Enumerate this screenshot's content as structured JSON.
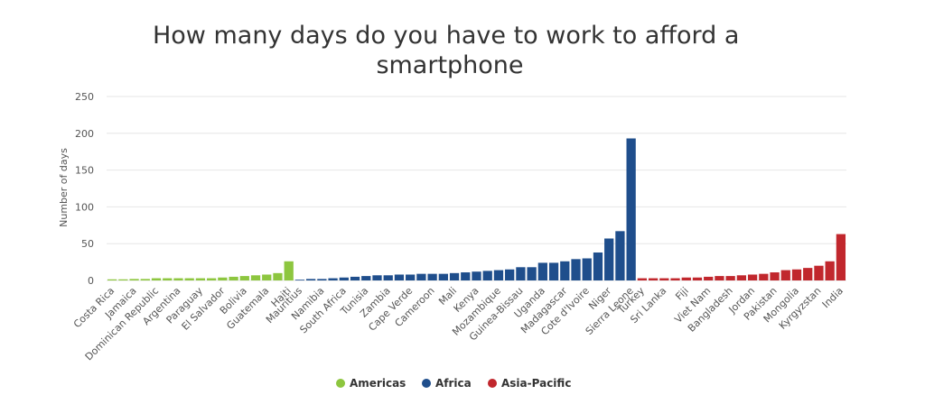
{
  "chart_data": {
    "type": "bar",
    "title": "How many days do you have to work to afford a smartphone",
    "y_label": "Number of days",
    "categories": [
      "Costa Rica",
      null,
      "Jamaica",
      null,
      "Dominican Republic",
      null,
      "Argentina",
      null,
      "Paraguay",
      null,
      "El Salvador",
      null,
      "Bolivia",
      null,
      "Guatemala",
      null,
      "Haiti",
      "Mauritius",
      null,
      "Namibia",
      null,
      "South Africa",
      null,
      "Tunisia",
      null,
      "Zambia",
      null,
      "Cape Verde",
      null,
      "Cameroon",
      null,
      "Mali",
      null,
      "Kenya",
      null,
      "Mozambique",
      null,
      "Guinea-Bissau",
      null,
      "Uganda",
      null,
      "Madagascar",
      null,
      "Cote d'Ivoire",
      null,
      "Niger",
      null,
      "Sierra Leone",
      "Turkey",
      null,
      "Sri Lanka",
      null,
      "Fiji",
      null,
      "Viet Nam",
      null,
      "Bangladesh",
      null,
      "Jordan",
      null,
      "Pakistan",
      null,
      "Mongolia",
      null,
      "Kyrgyzstan",
      null,
      "India"
    ],
    "series": [
      {
        "name": "Americas",
        "color": "#8dc63f",
        "values": [
          1.5,
          1.5,
          2,
          2,
          3,
          3,
          3,
          3,
          3,
          3,
          4,
          5,
          6,
          7,
          8,
          10,
          26,
          null,
          null,
          null,
          null,
          null,
          null,
          null,
          null,
          null,
          null,
          null,
          null,
          null,
          null,
          null,
          null,
          null,
          null,
          null,
          null,
          null,
          null,
          null,
          null,
          null,
          null,
          null,
          null,
          null,
          null,
          null,
          null,
          null,
          null,
          null,
          null,
          null,
          null,
          null,
          null,
          null,
          null,
          null,
          null,
          null,
          null,
          null,
          null,
          null,
          null
        ]
      },
      {
        "name": "Africa",
        "color": "#1f4e8c",
        "values": [
          null,
          null,
          null,
          null,
          null,
          null,
          null,
          null,
          null,
          null,
          null,
          null,
          null,
          null,
          null,
          null,
          null,
          1,
          2,
          2,
          3,
          4,
          5,
          6,
          7,
          7,
          8,
          8,
          9,
          9,
          9,
          10,
          11,
          12,
          13,
          14,
          15,
          18,
          18,
          24,
          24,
          26,
          29,
          30,
          38,
          57,
          67,
          193,
          null,
          null,
          null,
          null,
          null,
          null,
          null,
          null,
          null,
          null,
          null,
          null,
          null,
          null,
          null,
          null,
          null,
          null,
          null
        ]
      },
      {
        "name": "Asia-Pacific",
        "color": "#c1272d",
        "values": [
          null,
          null,
          null,
          null,
          null,
          null,
          null,
          null,
          null,
          null,
          null,
          null,
          null,
          null,
          null,
          null,
          null,
          null,
          null,
          null,
          null,
          null,
          null,
          null,
          null,
          null,
          null,
          null,
          null,
          null,
          null,
          null,
          null,
          null,
          null,
          null,
          null,
          null,
          null,
          null,
          null,
          null,
          null,
          null,
          null,
          null,
          null,
          null,
          3,
          3,
          3,
          3,
          4,
          4,
          5,
          6,
          6,
          7,
          8,
          9,
          11,
          14,
          15,
          17,
          20,
          26,
          63
        ]
      }
    ],
    "ylim": [
      0,
      250
    ],
    "yticks": [
      0,
      50,
      100,
      150,
      200,
      250
    ],
    "grid": true,
    "legend": "bottom"
  }
}
